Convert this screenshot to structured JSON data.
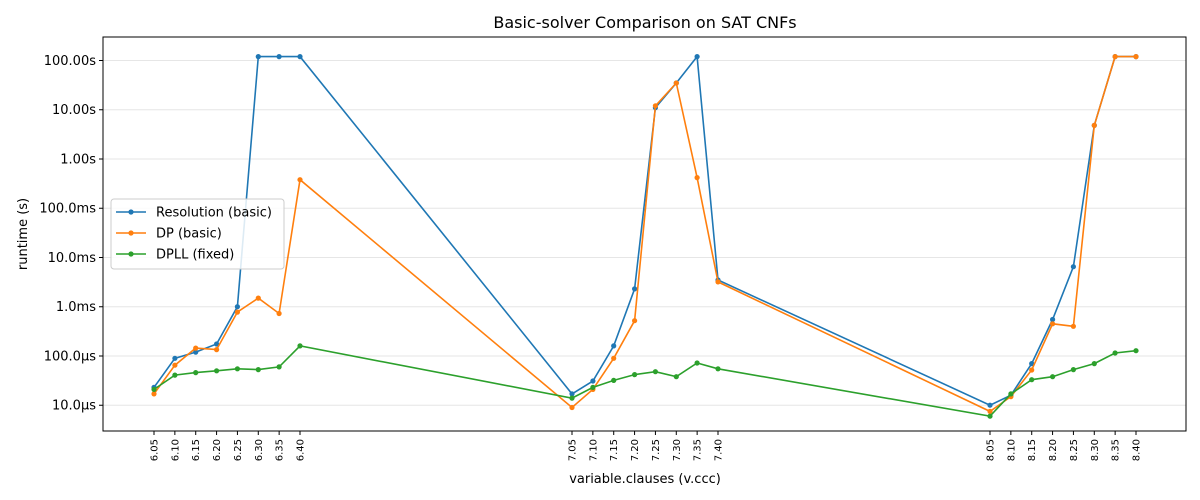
{
  "chart_data": {
    "type": "line",
    "title": "Basic-solver Comparison on SAT CNFs",
    "xlabel": "variable.clauses (v.ccc)",
    "ylabel": "runtime (s)",
    "yscale": "log",
    "ylim": [
      3e-06,
      300
    ],
    "yticks": [
      {
        "value": 1e-05,
        "label": "10.0µs"
      },
      {
        "value": 0.0001,
        "label": "100.0µs"
      },
      {
        "value": 0.001,
        "label": "1.0ms"
      },
      {
        "value": 0.01,
        "label": "10.0ms"
      },
      {
        "value": 0.1,
        "label": "100.0ms"
      },
      {
        "value": 1,
        "label": "1.00s"
      },
      {
        "value": 10,
        "label": "10.00s"
      },
      {
        "value": 100,
        "label": "100.00s"
      }
    ],
    "grid": "horizontal",
    "legend_position": "center-left",
    "categories": [
      "6.05",
      "6.10",
      "6.15",
      "6.20",
      "6.25",
      "6.30",
      "6.35",
      "6.40",
      "7.05",
      "7.10",
      "7.15",
      "7.20",
      "7.25",
      "7.30",
      "7.35",
      "7.40",
      "8.05",
      "8.10",
      "8.15",
      "8.20",
      "8.25",
      "8.30",
      "8.35",
      "8.40"
    ],
    "series": [
      {
        "name": "Resolution (basic)",
        "color": "#1f77b4",
        "values": [
          2.3e-05,
          9e-05,
          0.00012,
          0.000175,
          0.001,
          120,
          120,
          120,
          1.7e-05,
          3.1e-05,
          0.00016,
          0.0023,
          11,
          35,
          120,
          0.0035,
          1e-05,
          1.6e-05,
          7e-05,
          0.00055,
          0.0065,
          4.8,
          120,
          120
        ]
      },
      {
        "name": "DP (basic)",
        "color": "#ff7f0e",
        "values": [
          1.7e-05,
          6.5e-05,
          0.000145,
          0.000135,
          0.00078,
          0.0015,
          0.00073,
          0.38,
          9e-06,
          2.1e-05,
          9e-05,
          0.00052,
          12,
          35,
          0.42,
          0.0032,
          7.5e-06,
          1.5e-05,
          5.2e-05,
          0.00045,
          0.0004,
          4.8,
          120,
          120
        ]
      },
      {
        "name": "DPLL (fixed)",
        "color": "#2ca02c",
        "values": [
          2.1e-05,
          4.1e-05,
          4.6e-05,
          5e-05,
          5.5e-05,
          5.3e-05,
          6e-05,
          0.00016,
          1.4e-05,
          2.3e-05,
          3.2e-05,
          4.2e-05,
          4.8e-05,
          3.8e-05,
          7.2e-05,
          5.5e-05,
          6e-06,
          1.7e-05,
          3.3e-05,
          3.8e-05,
          5.3e-05,
          7e-05,
          0.000115,
          0.000128
        ]
      }
    ]
  }
}
